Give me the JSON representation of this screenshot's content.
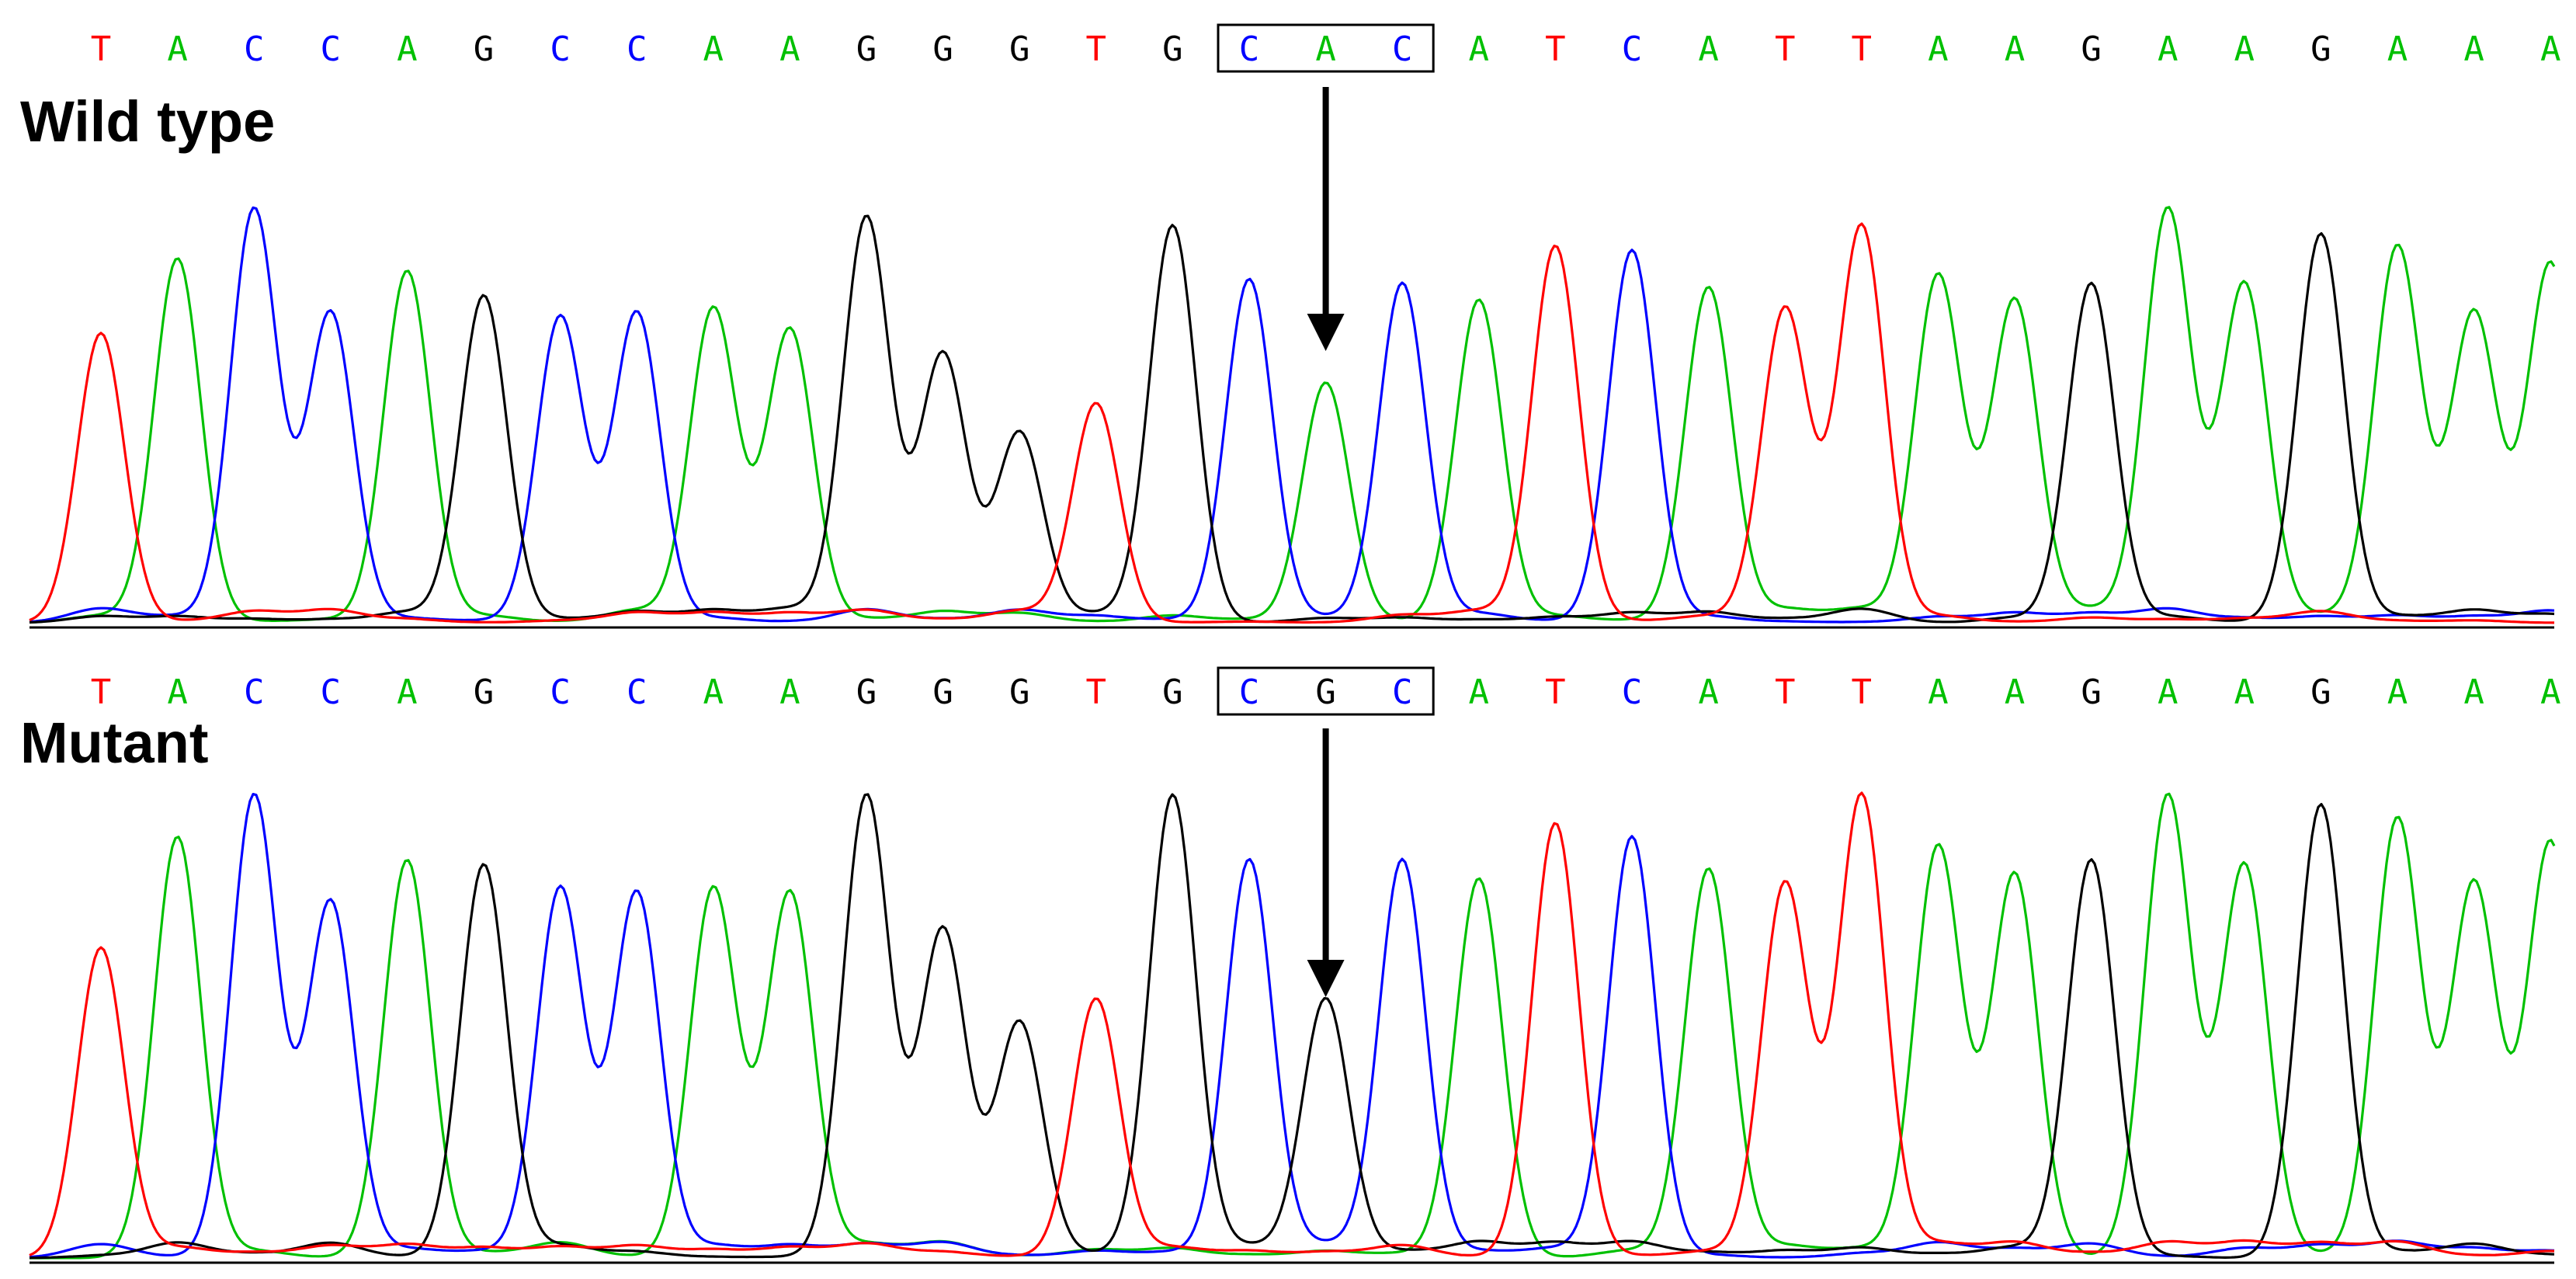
{
  "base_colors": {
    "A": "#00c000",
    "C": "#0000ff",
    "G": "#000000",
    "T": "#ff0000"
  },
  "panels": [
    {
      "label": "Wild type",
      "sequence": [
        "T",
        "A",
        "C",
        "C",
        "A",
        "G",
        "C",
        "C",
        "A",
        "A",
        "G",
        "G",
        "G",
        "T",
        "G",
        "C",
        "A",
        "C",
        "A",
        "T",
        "C",
        "A",
        "T",
        "T",
        "A",
        "A",
        "G",
        "A",
        "A",
        "G",
        "A",
        "A",
        "A"
      ],
      "boxed_bases": [
        15,
        16,
        17
      ],
      "arrow_base": 16
    },
    {
      "label": "Mutant",
      "sequence": [
        "T",
        "A",
        "C",
        "C",
        "A",
        "G",
        "C",
        "C",
        "A",
        "A",
        "G",
        "G",
        "G",
        "T",
        "G",
        "C",
        "G",
        "C",
        "A",
        "T",
        "C",
        "A",
        "T",
        "T",
        "A",
        "A",
        "G",
        "A",
        "A",
        "G",
        "A",
        "A",
        "A"
      ],
      "boxed_bases": [
        15,
        16,
        17
      ],
      "arrow_base": 16
    }
  ],
  "chromatogram": {
    "wild_type": {
      "peaks": [
        {
          "base": "T",
          "height": 0.7
        },
        {
          "base": "A",
          "height": 0.88
        },
        {
          "base": "C",
          "height": 1.0
        },
        {
          "base": "C",
          "height": 0.75
        },
        {
          "base": "A",
          "height": 0.85
        },
        {
          "base": "G",
          "height": 0.79
        },
        {
          "base": "C",
          "height": 0.74
        },
        {
          "base": "C",
          "height": 0.75
        },
        {
          "base": "A",
          "height": 0.76
        },
        {
          "base": "A",
          "height": 0.71
        },
        {
          "base": "G",
          "height": 0.98
        },
        {
          "base": "G",
          "height": 0.65
        },
        {
          "base": "G",
          "height": 0.46
        },
        {
          "base": "T",
          "height": 0.53
        },
        {
          "base": "G",
          "height": 0.96
        },
        {
          "base": "C",
          "height": 0.83
        },
        {
          "base": "A",
          "height": 0.58
        },
        {
          "base": "C",
          "height": 0.82
        },
        {
          "base": "A",
          "height": 0.78
        },
        {
          "base": "T",
          "height": 0.91
        },
        {
          "base": "C",
          "height": 0.9
        },
        {
          "base": "A",
          "height": 0.81
        },
        {
          "base": "T",
          "height": 0.76
        },
        {
          "base": "T",
          "height": 0.96
        },
        {
          "base": "A",
          "height": 0.84
        },
        {
          "base": "A",
          "height": 0.78
        },
        {
          "base": "G",
          "height": 0.82
        },
        {
          "base": "A",
          "height": 1.0
        },
        {
          "base": "A",
          "height": 0.82
        },
        {
          "base": "G",
          "height": 0.94
        },
        {
          "base": "A",
          "height": 0.91
        },
        {
          "base": "A",
          "height": 0.75
        },
        {
          "base": "A",
          "height": 0.87
        }
      ]
    },
    "mutant": {
      "peaks": [
        {
          "base": "T",
          "height": 0.67
        },
        {
          "base": "A",
          "height": 0.91
        },
        {
          "base": "C",
          "height": 1.0
        },
        {
          "base": "C",
          "height": 0.77
        },
        {
          "base": "A",
          "height": 0.86
        },
        {
          "base": "G",
          "height": 0.85
        },
        {
          "base": "C",
          "height": 0.8
        },
        {
          "base": "C",
          "height": 0.79
        },
        {
          "base": "A",
          "height": 0.8
        },
        {
          "base": "A",
          "height": 0.79
        },
        {
          "base": "G",
          "height": 1.0
        },
        {
          "base": "G",
          "height": 0.71
        },
        {
          "base": "G",
          "height": 0.51
        },
        {
          "base": "T",
          "height": 0.56
        },
        {
          "base": "G",
          "height": 1.0
        },
        {
          "base": "C",
          "height": 0.86
        },
        {
          "base": "G",
          "height": 0.56
        },
        {
          "base": "C",
          "height": 0.86
        },
        {
          "base": "A",
          "height": 0.82
        },
        {
          "base": "T",
          "height": 0.94
        },
        {
          "base": "C",
          "height": 0.91
        },
        {
          "base": "A",
          "height": 0.84
        },
        {
          "base": "T",
          "height": 0.81
        },
        {
          "base": "T",
          "height": 1.0
        },
        {
          "base": "A",
          "height": 0.89
        },
        {
          "base": "A",
          "height": 0.83
        },
        {
          "base": "G",
          "height": 0.86
        },
        {
          "base": "A",
          "height": 1.0
        },
        {
          "base": "A",
          "height": 0.85
        },
        {
          "base": "G",
          "height": 0.98
        },
        {
          "base": "A",
          "height": 0.95
        },
        {
          "base": "A",
          "height": 0.81
        },
        {
          "base": "A",
          "height": 0.9
        }
      ]
    }
  }
}
